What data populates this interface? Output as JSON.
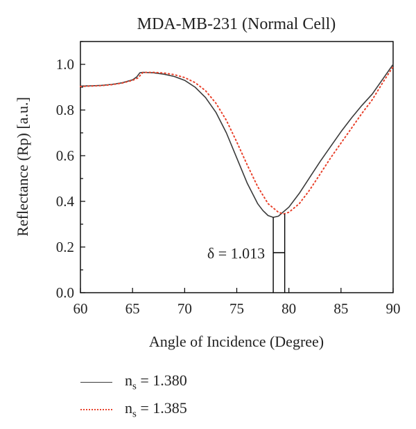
{
  "chart_data": {
    "type": "line",
    "title": "MDA-MB-231 (Normal Cell)",
    "xlabel": "Angle of Incidence (Degree)",
    "ylabel": "Reflectance (Rp) [a.u.]",
    "xlim": [
      60,
      90
    ],
    "ylim": [
      0.0,
      1.1
    ],
    "xticks": [
      60,
      65,
      70,
      75,
      80,
      85,
      90
    ],
    "yticks": [
      0.0,
      0.2,
      0.4,
      0.6,
      0.8,
      1.0
    ],
    "xtick_labels": [
      "60",
      "65",
      "70",
      "75",
      "80",
      "85",
      "90"
    ],
    "ytick_labels": [
      "0.0",
      "0.2",
      "0.4",
      "0.6",
      "0.8",
      "1.0"
    ],
    "grid": false,
    "legend_position": "below",
    "series": [
      {
        "name_prefix": "n",
        "name_sub": "s",
        "name_suffix": " = 1.380",
        "color": "#3a3a3a",
        "style": "solid",
        "points": [
          [
            60,
            0.905
          ],
          [
            61,
            0.906
          ],
          [
            62,
            0.908
          ],
          [
            63,
            0.912
          ],
          [
            64,
            0.919
          ],
          [
            65,
            0.932
          ],
          [
            65.4,
            0.945
          ],
          [
            65.7,
            0.963
          ],
          [
            66,
            0.965
          ],
          [
            67,
            0.963
          ],
          [
            68,
            0.957
          ],
          [
            69,
            0.947
          ],
          [
            70,
            0.93
          ],
          [
            71,
            0.9
          ],
          [
            72,
            0.855
          ],
          [
            73,
            0.79
          ],
          [
            74,
            0.7
          ],
          [
            75,
            0.59
          ],
          [
            76,
            0.48
          ],
          [
            77,
            0.39
          ],
          [
            77.5,
            0.36
          ],
          [
            78,
            0.338
          ],
          [
            78.5,
            0.33
          ],
          [
            79,
            0.335
          ],
          [
            80,
            0.375
          ],
          [
            81,
            0.435
          ],
          [
            82,
            0.505
          ],
          [
            83,
            0.575
          ],
          [
            84,
            0.64
          ],
          [
            85,
            0.705
          ],
          [
            86,
            0.765
          ],
          [
            87,
            0.82
          ],
          [
            88,
            0.87
          ],
          [
            89,
            0.935
          ],
          [
            90,
            1.0
          ]
        ]
      },
      {
        "name_prefix": "n",
        "name_sub": "s",
        "name_suffix": " = 1.385",
        "color": "#e8402a",
        "style": "dotted",
        "points": [
          [
            60,
            0.903
          ],
          [
            61,
            0.905
          ],
          [
            62,
            0.907
          ],
          [
            63,
            0.911
          ],
          [
            64,
            0.918
          ],
          [
            65,
            0.93
          ],
          [
            65.5,
            0.94
          ],
          [
            66,
            0.965
          ],
          [
            67,
            0.965
          ],
          [
            68,
            0.962
          ],
          [
            69,
            0.955
          ],
          [
            70,
            0.942
          ],
          [
            71,
            0.92
          ],
          [
            72,
            0.885
          ],
          [
            73,
            0.83
          ],
          [
            74,
            0.755
          ],
          [
            75,
            0.66
          ],
          [
            76,
            0.56
          ],
          [
            77,
            0.465
          ],
          [
            78,
            0.39
          ],
          [
            79,
            0.352
          ],
          [
            79.5,
            0.345
          ],
          [
            80,
            0.352
          ],
          [
            81,
            0.39
          ],
          [
            82,
            0.45
          ],
          [
            83,
            0.52
          ],
          [
            84,
            0.59
          ],
          [
            85,
            0.655
          ],
          [
            86,
            0.72
          ],
          [
            87,
            0.785
          ],
          [
            88,
            0.845
          ],
          [
            89,
            0.92
          ],
          [
            90,
            0.99
          ]
        ]
      }
    ],
    "annotation": {
      "text": "δ = 1.013",
      "x1": 78.5,
      "x2": 79.6,
      "y_top1": 0.33,
      "y_top2": 0.345,
      "y_arrow": 0.175
    }
  }
}
